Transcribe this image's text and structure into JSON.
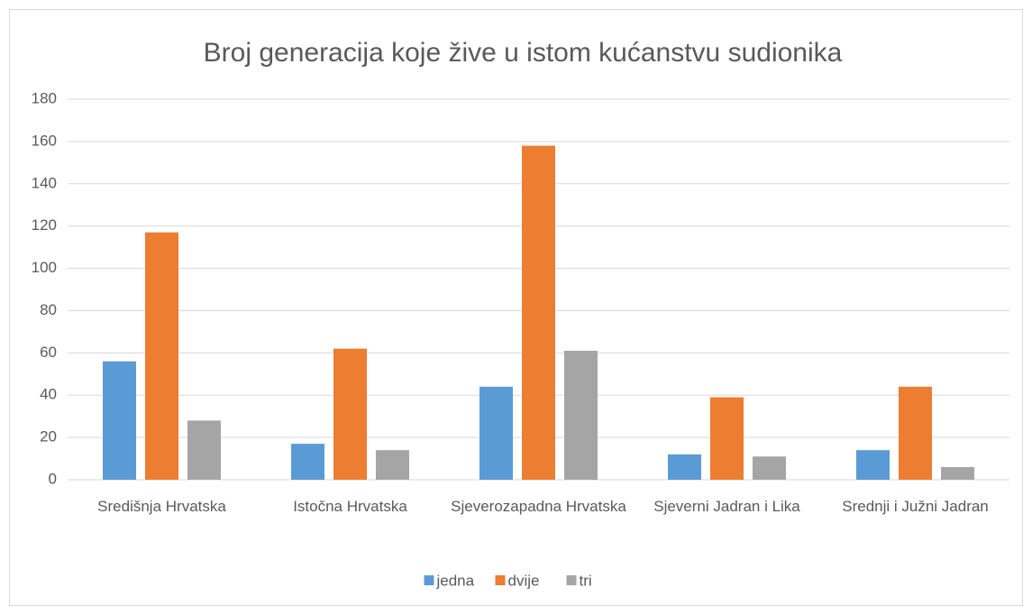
{
  "chart_data": {
    "type": "bar",
    "title": "Broj generacija koje žive u istom kućanstvu sudionika",
    "categories": [
      "Središnja Hrvatska",
      "Istočna Hrvatska",
      "Sjeverozapadna Hrvatska",
      "Sjeverni Jadran i Lika",
      "Srednji i Južni Jadran"
    ],
    "series": [
      {
        "name": "jedna",
        "color": "#5b9bd5",
        "values": [
          56,
          17,
          44,
          12,
          14
        ]
      },
      {
        "name": "dvije",
        "color": "#ed7d31",
        "values": [
          117,
          62,
          158,
          39,
          44
        ]
      },
      {
        "name": "tri",
        "color": "#a5a5a5",
        "values": [
          28,
          14,
          61,
          11,
          6
        ]
      }
    ],
    "ylim": [
      0,
      180
    ],
    "yticks": [
      0,
      20,
      40,
      60,
      80,
      100,
      120,
      140,
      160,
      180
    ],
    "grid": true,
    "legend": "bottom"
  }
}
